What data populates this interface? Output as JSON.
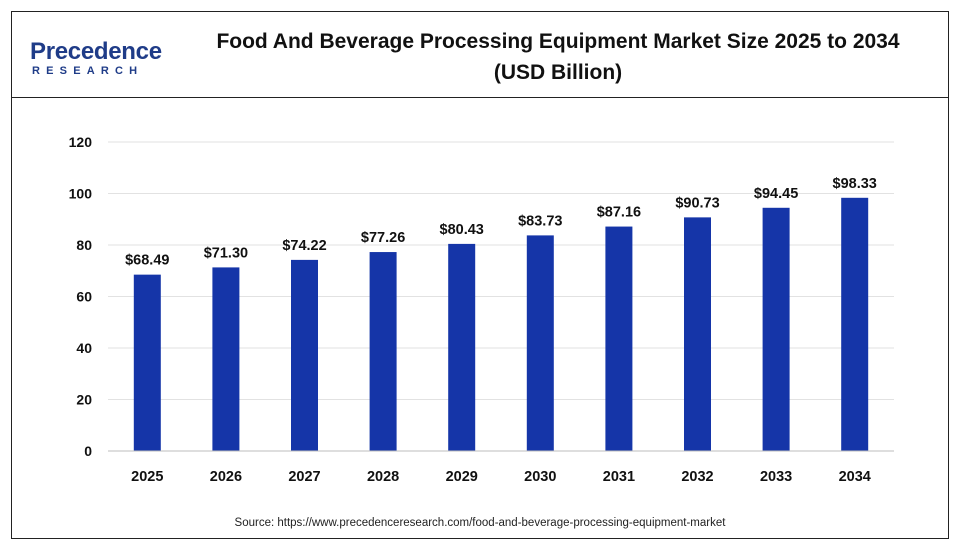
{
  "header": {
    "logo_top": "Precedence",
    "logo_bottom": "RESEARCH",
    "title_line1": "Food And Beverage Processing Equipment Market Size 2025 to 2034",
    "title_line2": "(USD Billion)"
  },
  "colors": {
    "bar": "#1535a8",
    "logo": "#1f3c88",
    "grid": "#e2e2e2"
  },
  "chart_data": {
    "type": "bar",
    "categories": [
      "2025",
      "2026",
      "2027",
      "2028",
      "2029",
      "2030",
      "2031",
      "2032",
      "2033",
      "2034"
    ],
    "series": [
      {
        "values": [
          68.49,
          71.3,
          74.22,
          77.26,
          80.43,
          83.73,
          87.16,
          90.73,
          94.45,
          98.33
        ],
        "data_labels": [
          "$68.49",
          "$71.30",
          "$74.22",
          "$77.26",
          "$80.43",
          "$83.73",
          "$87.16",
          "$90.73",
          "$94.45",
          "$98.33"
        ]
      }
    ],
    "title": "Food And Beverage Processing Equipment Market Size 2025 to 2034 (USD Billion)",
    "xlabel": "",
    "ylabel": "",
    "ylim": [
      0,
      120
    ],
    "yticks": [
      0,
      20,
      40,
      60,
      80,
      100,
      120
    ],
    "grid": true,
    "legend": "none"
  },
  "source": "Source: https://www.precedenceresearch.com/food-and-beverage-processing-equipment-market"
}
